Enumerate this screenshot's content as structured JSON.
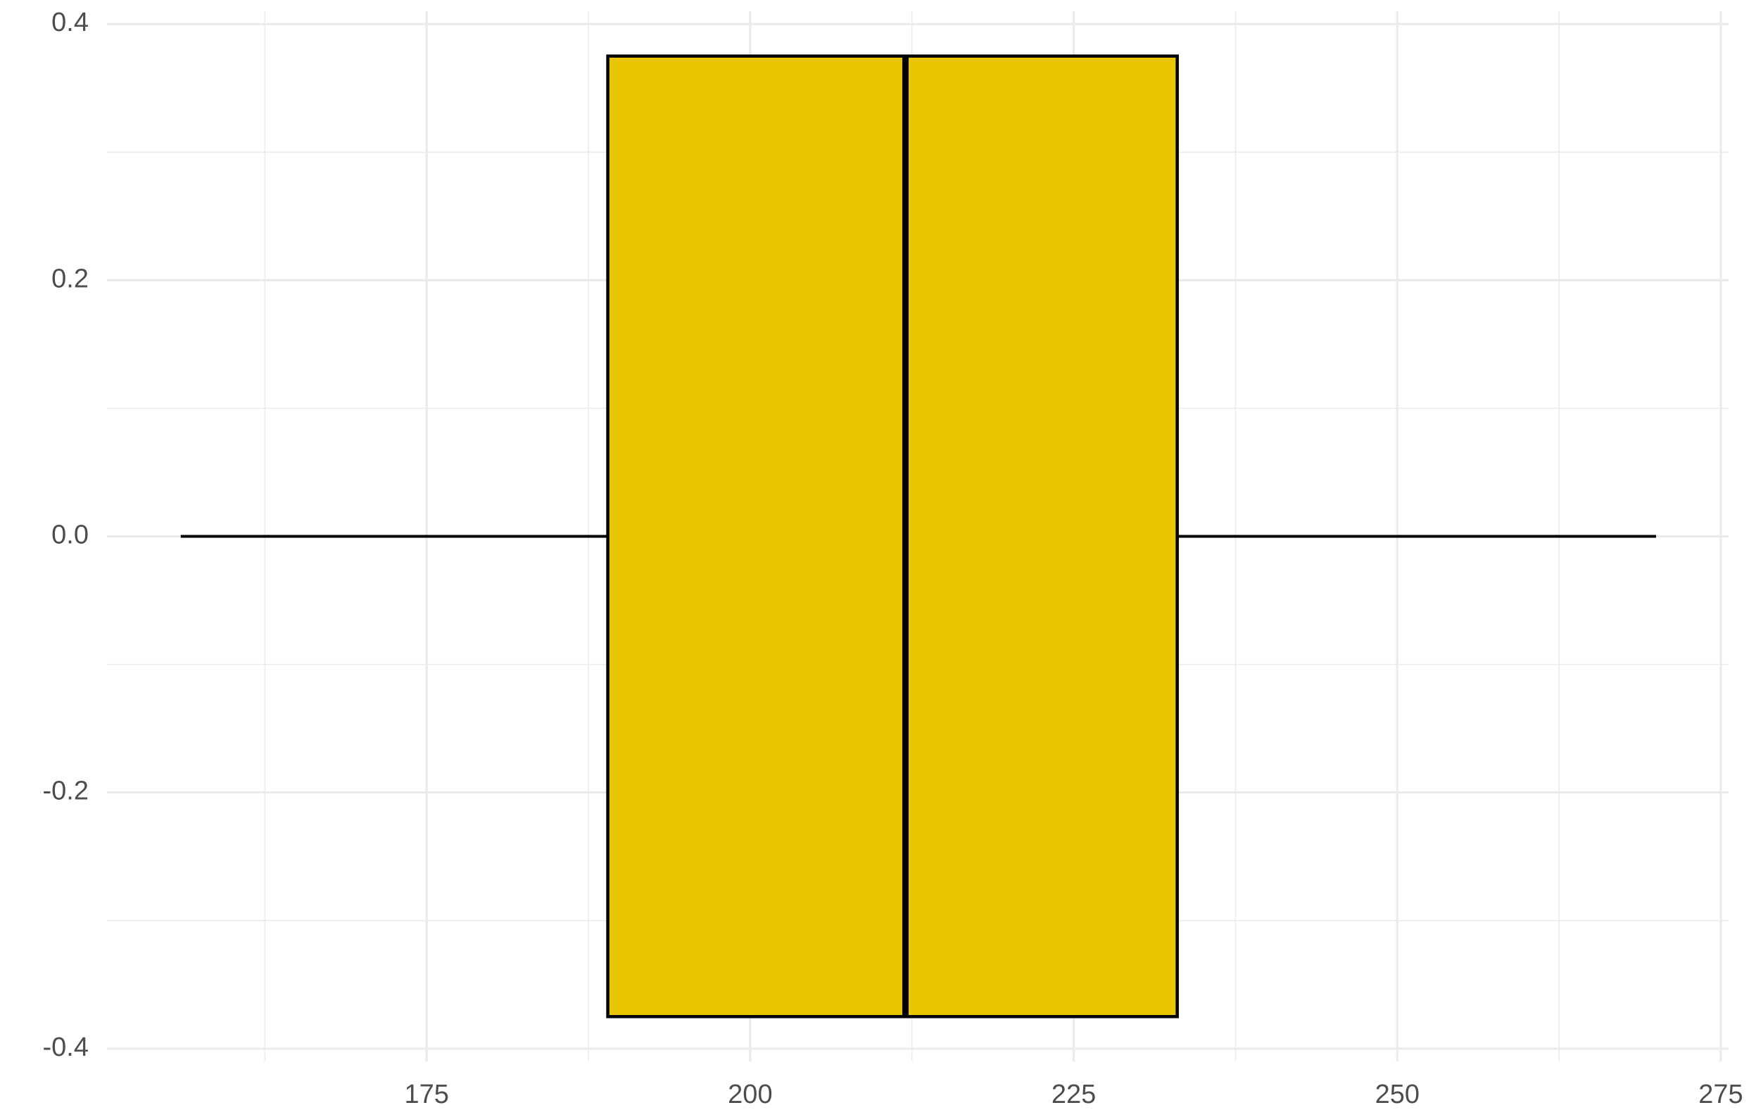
{
  "chart_data": {
    "type": "boxplot",
    "orientation": "horizontal",
    "box": {
      "whisker_low": 156,
      "q1": 189,
      "median": 212,
      "q3": 233,
      "whisker_high": 270,
      "center": 0,
      "width": 0.75,
      "color": "#EAC600"
    },
    "xlim": [
      150.3,
      275.6
    ],
    "xticks": [
      175,
      200,
      225,
      250,
      275
    ],
    "x_minor_ticks": [
      162.5,
      187.5,
      212.5,
      237.5,
      262.5
    ],
    "ylim": [
      -0.41,
      0.41
    ],
    "yticks": [
      -0.4,
      -0.2,
      {
        "value": 0,
        "label": "0.0"
      },
      0.2,
      0.4
    ],
    "y_minor_ticks": [
      -0.3,
      -0.1,
      0.1,
      0.3
    ],
    "grid": true
  }
}
